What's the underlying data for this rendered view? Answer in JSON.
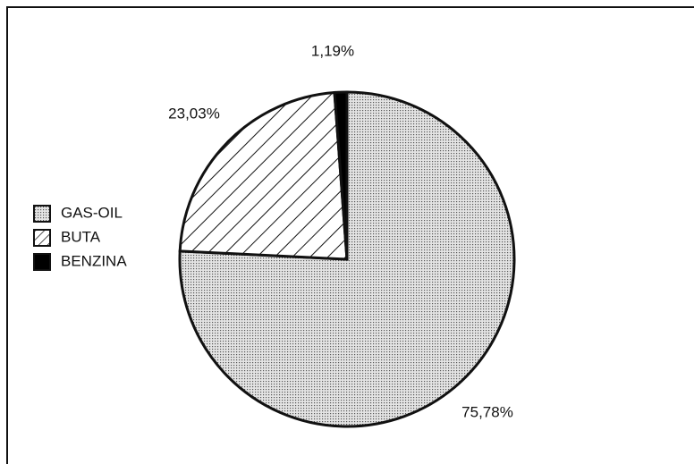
{
  "chart_data": {
    "type": "pie",
    "categories": [
      "GAS-OIL",
      "BUTA",
      "BENZINA"
    ],
    "values": [
      75.78,
      23.03,
      1.19
    ],
    "value_labels": [
      "75,78%",
      "23,03%",
      "1,19%"
    ],
    "legend": "left"
  }
}
